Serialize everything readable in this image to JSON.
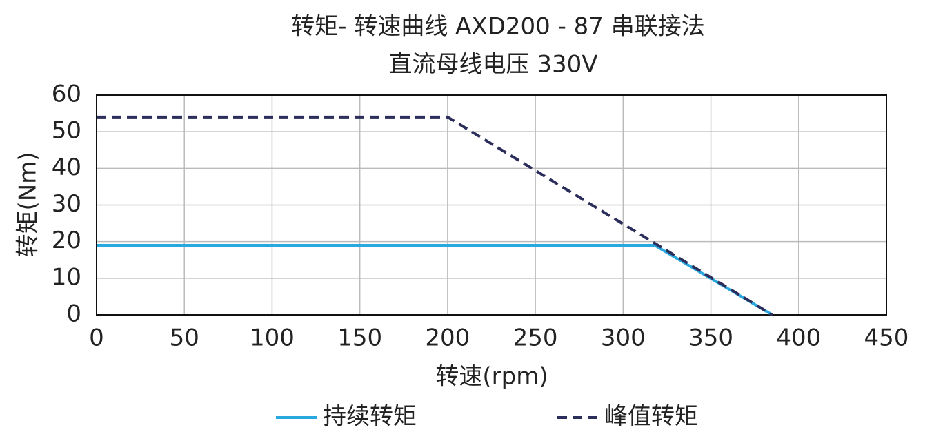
{
  "chart_data": {
    "type": "line",
    "title": "转矩- 转速曲线 AXD200 - 87 串联接法",
    "subtitle": "直流母线电压 330V",
    "x_label": "转速(rpm)",
    "y_label": "转矩(Nm)",
    "xlim": [
      0,
      450
    ],
    "xticks": [
      0,
      50,
      100,
      150,
      200,
      250,
      300,
      350,
      400,
      450
    ],
    "ylim": [
      0,
      60
    ],
    "yticks": [
      0,
      10,
      20,
      30,
      40,
      50,
      60
    ],
    "grid": true,
    "legend": "bottom",
    "series": [
      {
        "name": "持续转矩",
        "color": "#29a8e0",
        "dash": false,
        "x": [
          0,
          318,
          385
        ],
        "values": [
          19,
          19,
          0
        ]
      },
      {
        "name": "峰值转矩",
        "color": "#2b2d5a",
        "dash": true,
        "x": [
          0,
          200,
          385
        ],
        "values": [
          54,
          54,
          0
        ]
      }
    ]
  }
}
